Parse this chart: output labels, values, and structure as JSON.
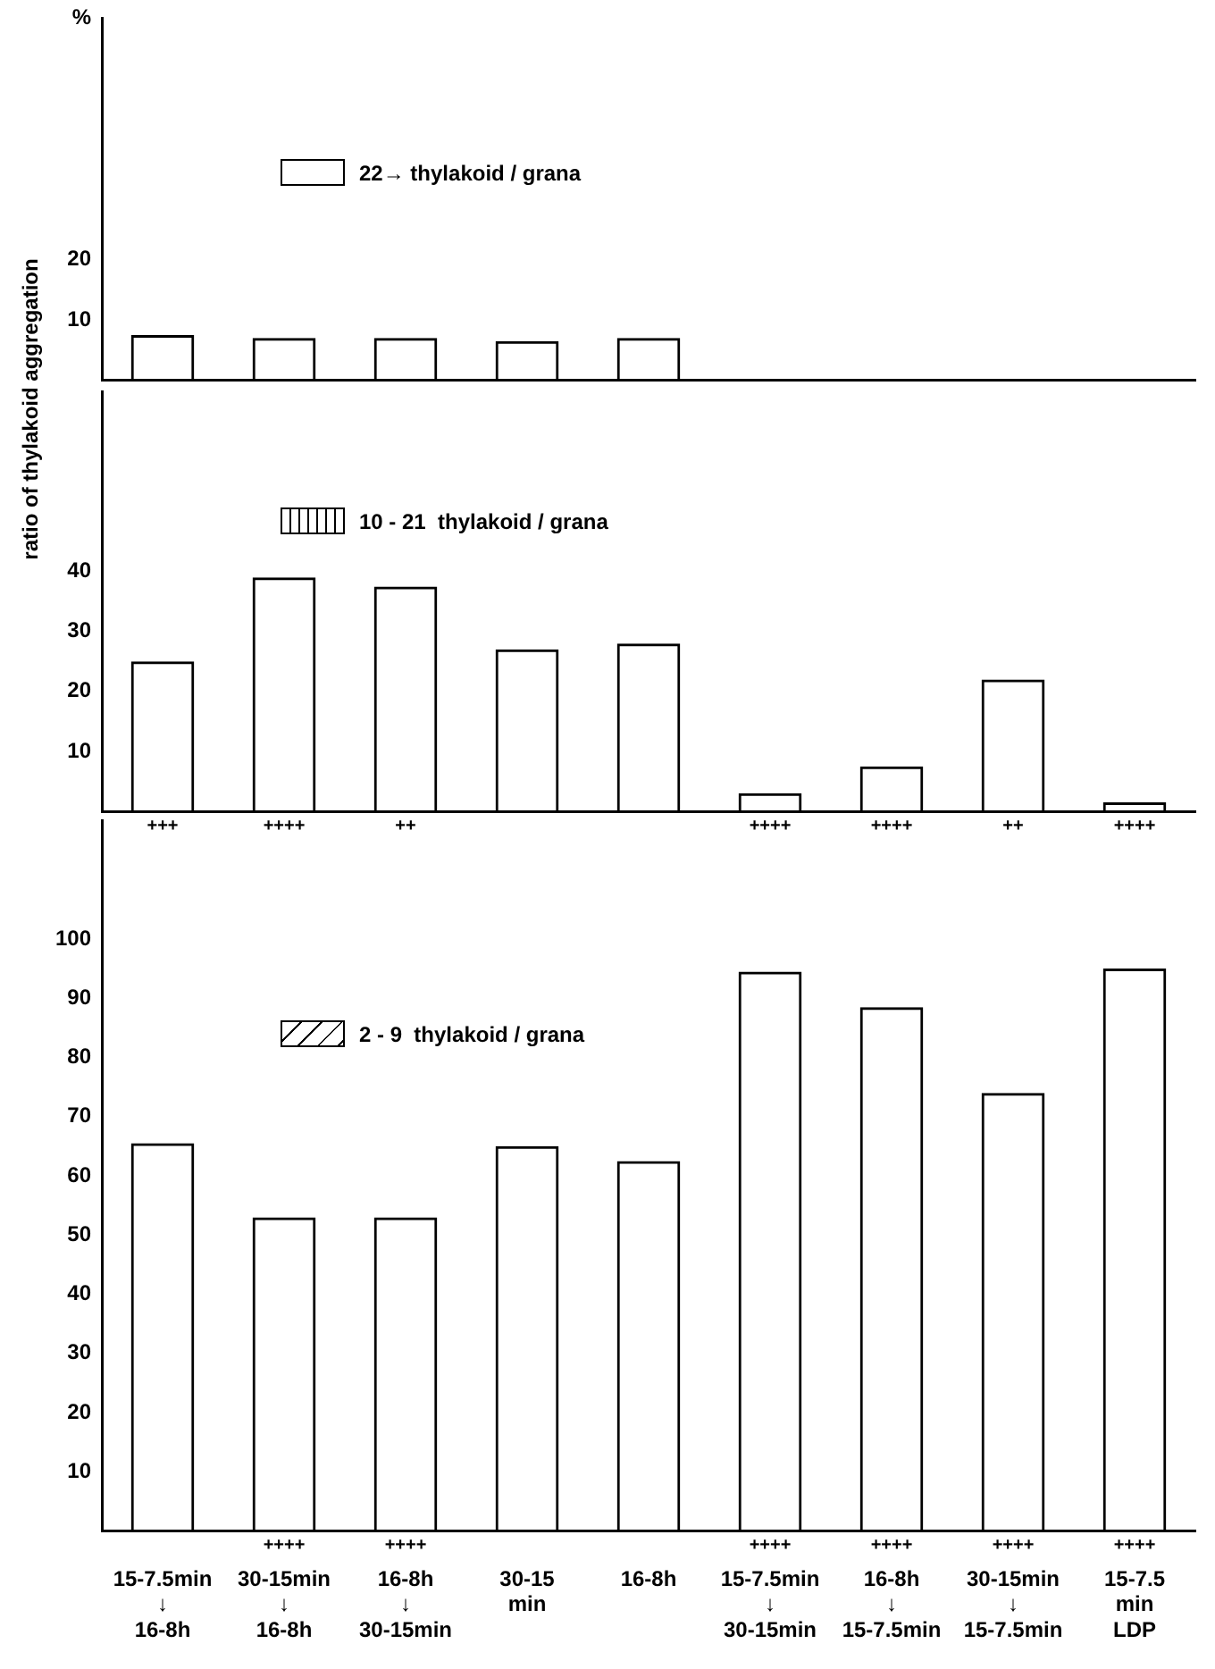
{
  "chart_data": [
    {
      "type": "bar",
      "ylabel": "ratio of thylakoid aggregation",
      "annotations": [
        "%"
      ],
      "categories": [
        null,
        null,
        null,
        null,
        null,
        null,
        null,
        null,
        null
      ],
      "series": [
        {
          "name": "22→ thylakoid / grana",
          "color": "#000000",
          "values": [
            7.5,
            7,
            7,
            6.5,
            7,
            0,
            0,
            0,
            0
          ]
        }
      ],
      "ylim": [
        0,
        60
      ],
      "yticks": [
        10,
        20
      ],
      "tick_labels": "y",
      "legend": "top left"
    },
    {
      "type": "bar",
      "categories": [
        null,
        null,
        null,
        null,
        null,
        null,
        null,
        null,
        null
      ],
      "series": [
        {
          "name": "10 - 21  thylakoid / grana",
          "color": "#000000",
          "values": [
            25,
            39,
            37.5,
            27,
            28,
            3,
            7.5,
            22,
            1.5
          ]
        }
      ],
      "annotations": [
        "+++",
        "++++",
        "++",
        "++++",
        "++++",
        "++",
        "++++"
      ],
      "ylim": [
        0,
        70
      ],
      "yticks": [
        10,
        20,
        30,
        40
      ],
      "tick_labels": "y",
      "legend": "top left"
    },
    {
      "type": "bar",
      "categories": [
        "15-7.5min\n↓\n16-8h",
        "30-15min\n↓\n16-8h",
        "16-8h\n↓\n30-15min",
        "30-15\nmin",
        "16-8h",
        "15-7.5min\n↓\n30-15min",
        "16-8h\n↓\n15-7.5min",
        "30-15min\n↓\n15-7.5min",
        "15-7.5\nmin\nLDP"
      ],
      "series": [
        {
          "name": "2 - 9  thylakoid / grana",
          "color": "#000000",
          "values": [
            65.5,
            53,
            53,
            65,
            62.5,
            94.5,
            88.5,
            74,
            95
          ]
        }
      ],
      "annotations": [
        "++++",
        "++++",
        "++++",
        "++++",
        "++++",
        "++++"
      ],
      "ylim": [
        0,
        120
      ],
      "yticks": [
        10,
        20,
        30,
        40,
        50,
        60,
        70,
        80,
        90,
        100
      ],
      "legend": "top left"
    }
  ]
}
